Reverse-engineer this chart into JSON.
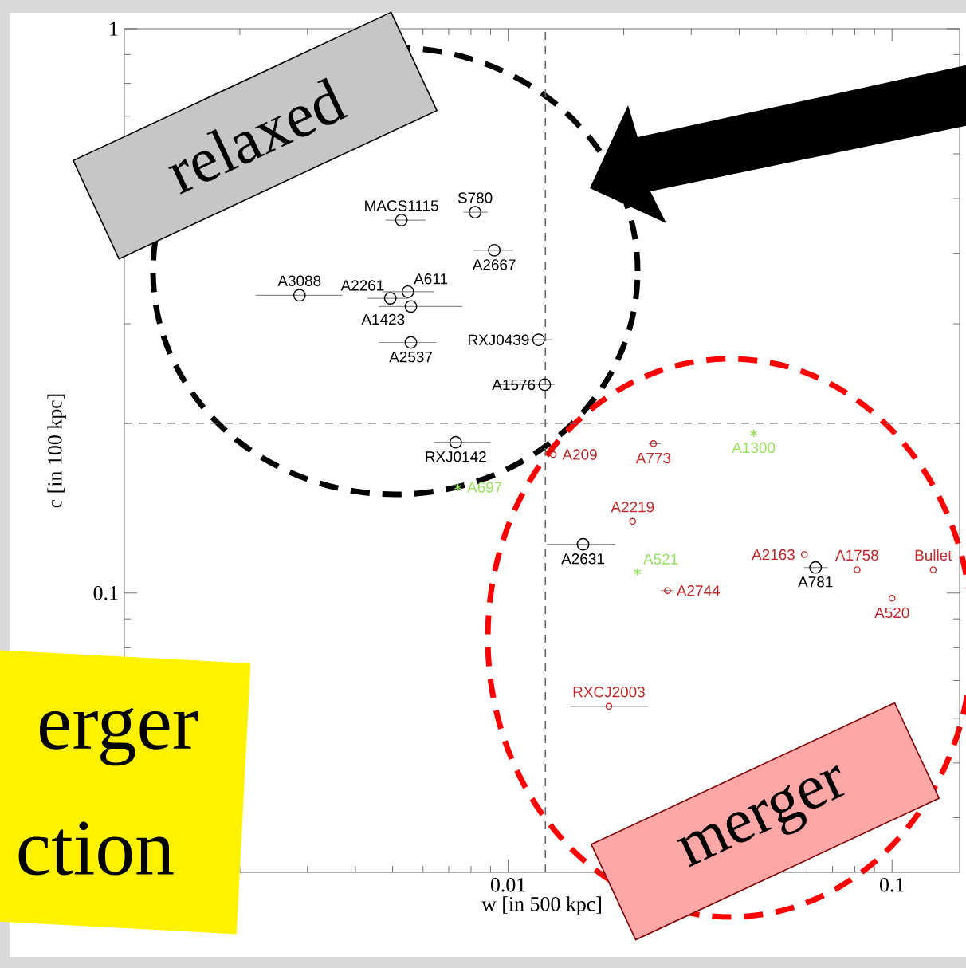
{
  "chart_data": {
    "type": "scatter",
    "xlabel": "w [in 500 kpc]",
    "ylabel": "c [in 100 kpc]",
    "log": "xy",
    "xlim": [
      0.001,
      0.15
    ],
    "ylim": [
      0.032,
      1
    ],
    "xticks": [
      0.01,
      0.1
    ],
    "yticks": [
      0.1,
      1
    ],
    "series": [
      {
        "color": "#000000",
        "marker": "circle",
        "x": [
          0.00527,
          0.0082,
          0.0092,
          0.00286,
          0.00493,
          0.00548,
          0.00558,
          0.012,
          0.00558,
          0.01245,
          0.0073,
          0.01567,
          0.0632
        ],
        "values": [
          0.458,
          0.473,
          0.405,
          0.337,
          0.333,
          0.342,
          0.322,
          0.281,
          0.278,
          0.234,
          0.185,
          0.122,
          0.111
        ],
        "xerrors": [
          [
            0.00479,
            0.00609
          ],
          [
            0.00765,
            0.00883
          ],
          [
            0.0081,
            0.0103
          ],
          [
            0.0022,
            0.0037
          ],
          [
            0.0043,
            0.0055
          ],
          [
            0.0047,
            0.0064
          ],
          [
            0.0046,
            0.0076
          ],
          [
            0.0104,
            0.0131
          ],
          [
            0.0046,
            0.0065
          ],
          [
            0.0094,
            0.0132
          ],
          [
            0.0064,
            0.009
          ],
          [
            0.0126,
            0.019
          ],
          [
            0.059,
            0.068
          ]
        ]
      },
      {
        "color": "#c0282a",
        "marker": "circle",
        "x": [
          0.0131,
          0.0239,
          0.0211,
          0.0591,
          0.0811,
          0.128,
          0.1,
          0.026,
          0.0183
        ],
        "values": [
          0.176,
          0.184,
          0.134,
          0.117,
          0.11,
          0.11,
          0.0979,
          0.101,
          0.063
        ],
        "xerrors": [
          null,
          [
            0.0232,
            0.025
          ],
          null,
          null,
          null,
          null,
          null,
          [
            0.025,
            0.027
          ],
          [
            0.0145,
            0.0232
          ]
        ]
      },
      {
        "color": "#99e060",
        "marker": "cross",
        "x": [
          0.0436,
          0.0217,
          0.0074
        ],
        "values": [
          0.192,
          0.109,
          0.154
        ]
      }
    ],
    "ref_lines": [
      {
        "axis": "x",
        "value": 0.0125,
        "color": "#666666",
        "line_style": "dashed"
      },
      {
        "axis": "y",
        "value": 0.2,
        "color": "#666666",
        "line_style": "dashed"
      }
    ],
    "annotations": [
      {
        "text": "MACS1115",
        "x": 0.00527,
        "y": 0.458
      },
      {
        "text": "S780",
        "x": 0.0082,
        "y": 0.473
      },
      {
        "text": "A2667",
        "x": 0.0092,
        "y": 0.405
      },
      {
        "text": "A3088",
        "x": 0.00286,
        "y": 0.337
      },
      {
        "text": "A2261",
        "x": 0.00493,
        "y": 0.333
      },
      {
        "text": "A611",
        "x": 0.00548,
        "y": 0.342
      },
      {
        "text": "A1423",
        "x": 0.00558,
        "y": 0.322
      },
      {
        "text": "RXJ0439",
        "x": 0.012,
        "y": 0.281
      },
      {
        "text": "A2537",
        "x": 0.00558,
        "y": 0.278
      },
      {
        "text": "A1576",
        "x": 0.01245,
        "y": 0.234
      },
      {
        "text": "RXJ0142",
        "x": 0.0073,
        "y": 0.185
      },
      {
        "text": "A2631",
        "x": 0.01567,
        "y": 0.122
      },
      {
        "text": "A781",
        "x": 0.0632,
        "y": 0.111
      },
      {
        "text": "A209",
        "x": 0.0131,
        "y": 0.176
      },
      {
        "text": "A773",
        "x": 0.0239,
        "y": 0.184
      },
      {
        "text": "A2219",
        "x": 0.0211,
        "y": 0.134
      },
      {
        "text": "A2163",
        "x": 0.0591,
        "y": 0.117
      },
      {
        "text": "A1758",
        "x": 0.0811,
        "y": 0.11
      },
      {
        "text": "Bullet",
        "x": 0.128,
        "y": 0.11
      },
      {
        "text": "A520",
        "x": 0.1,
        "y": 0.0979
      },
      {
        "text": "A2744",
        "x": 0.026,
        "y": 0.101
      },
      {
        "text": "RXCJ2003",
        "x": 0.0183,
        "y": 0.063
      },
      {
        "text": "A1300",
        "x": 0.0436,
        "y": 0.192
      },
      {
        "text": "A521",
        "x": 0.0217,
        "y": 0.109
      },
      {
        "text": "A697",
        "x": 0.0074,
        "y": 0.154
      },
      "relaxed",
      "merger",
      "erger",
      "ction"
    ]
  }
}
